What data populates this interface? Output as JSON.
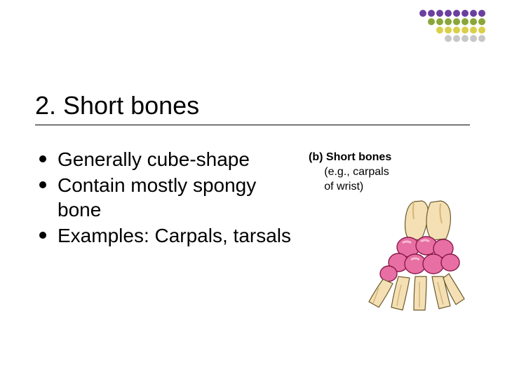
{
  "decoration": {
    "rows": [
      [
        "#6b3fa0",
        "#6b3fa0",
        "#6b3fa0",
        "#6b3fa0",
        "#6b3fa0",
        "#6b3fa0",
        "#6b3fa0",
        "#6b3fa0"
      ],
      [
        "#8aa63a",
        "#8aa63a",
        "#8aa63a",
        "#8aa63a",
        "#8aa63a",
        "#8aa63a",
        "#8aa63a"
      ],
      [
        "#d9cf4a",
        "#d9cf4a",
        "#d9cf4a",
        "#d9cf4a",
        "#d9cf4a",
        "#d9cf4a"
      ],
      [
        "#c7c7c7",
        "#c7c7c7",
        "#c7c7c7",
        "#c7c7c7",
        "#c7c7c7"
      ]
    ]
  },
  "title": "2. Short bones",
  "bullets": [
    "Generally cube-shape",
    "Contain mostly spongy bone",
    "Examples: Carpals, tarsals"
  ],
  "figure": {
    "label_prefix": "(b)",
    "label_bold": "Short bones",
    "label_rest1": "(e.g., carpals",
    "label_rest2": "of wrist)",
    "colors": {
      "bone_fill": "#f4e0b4",
      "bone_stroke": "#6b5a2a",
      "carpal_fill": "#e86fa3",
      "carpal_stroke": "#8a1a4d",
      "shadow": "#d4b679"
    }
  }
}
